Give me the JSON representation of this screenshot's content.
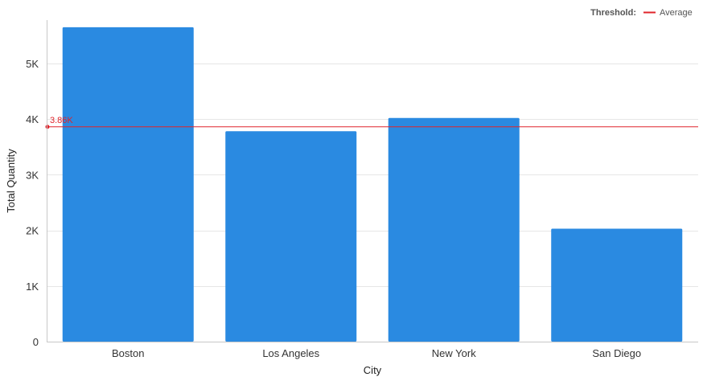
{
  "legend": {
    "title": "Threshold:",
    "label": "Average"
  },
  "colors": {
    "bar": "#2a8ae1",
    "threshold": "#e0242b",
    "grid": "#e6e6e6",
    "axis": "#c8c8c8"
  },
  "chart_data": {
    "type": "bar",
    "categories": [
      "Boston",
      "Los Angeles",
      "New York",
      "San Diego"
    ],
    "values": [
      5650,
      3780,
      4020,
      2030
    ],
    "xlabel": "City",
    "ylabel": "Total Quantity",
    "ylim": [
      0,
      5850
    ],
    "yticks": [
      0,
      1000,
      2000,
      3000,
      4000,
      5000
    ],
    "ytick_labels": [
      "0",
      "1K",
      "2K",
      "3K",
      "4K",
      "5K"
    ],
    "grid": true,
    "legend_position": "top-right",
    "threshold": {
      "value": 3860,
      "label": "3.86K",
      "name": "Average"
    }
  }
}
